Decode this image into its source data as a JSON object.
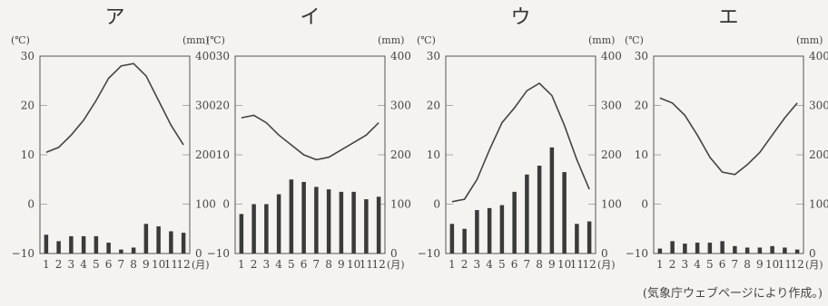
{
  "source": "(気象庁ウェブページにより作成。)",
  "temp_unit": "(℃)",
  "precip_unit": "(mm)",
  "month_unit": "(月)",
  "temp_ticks": [
    "30",
    "20",
    "10",
    "0",
    "−10"
  ],
  "precip_ticks": [
    "400",
    "300",
    "200",
    "100",
    "0"
  ],
  "month_labels": [
    "1",
    "2",
    "3",
    "4",
    "5",
    "6",
    "7",
    "8",
    "9",
    "10",
    "11",
    "12"
  ],
  "chart_data": [
    {
      "type": "bar+line",
      "title": "ア",
      "categories": [
        "1",
        "2",
        "3",
        "4",
        "5",
        "6",
        "7",
        "8",
        "9",
        "10",
        "11",
        "12"
      ],
      "temperature": [
        10.5,
        11.5,
        14,
        17,
        21,
        25.5,
        28,
        28.5,
        26,
        21,
        16,
        12
      ],
      "precipitation": [
        38,
        25,
        35,
        35,
        35,
        22,
        8,
        12,
        60,
        55,
        45,
        42
      ],
      "ylim_temp": [
        -10,
        30
      ],
      "ylim_precip": [
        0,
        400
      ]
    },
    {
      "type": "bar+line",
      "title": "イ",
      "categories": [
        "1",
        "2",
        "3",
        "4",
        "5",
        "6",
        "7",
        "8",
        "9",
        "10",
        "11",
        "12"
      ],
      "temperature": [
        17.5,
        18,
        16.5,
        14,
        12,
        10,
        9,
        9.5,
        11,
        12.5,
        14,
        16.5
      ],
      "precipitation": [
        80,
        100,
        100,
        120,
        150,
        145,
        135,
        130,
        125,
        125,
        110,
        115
      ],
      "ylim_temp": [
        -10,
        30
      ],
      "ylim_precip": [
        0,
        400
      ]
    },
    {
      "type": "bar+line",
      "title": "ウ",
      "categories": [
        "1",
        "2",
        "3",
        "4",
        "5",
        "6",
        "7",
        "8",
        "9",
        "10",
        "11",
        "12"
      ],
      "temperature": [
        0.5,
        1,
        5,
        11,
        16.5,
        19.5,
        23,
        24.5,
        22,
        16,
        9,
        3
      ],
      "precipitation": [
        60,
        50,
        88,
        92,
        98,
        125,
        160,
        178,
        215,
        165,
        60,
        65
      ],
      "ylim_temp": [
        -10,
        30
      ],
      "ylim_precip": [
        0,
        400
      ]
    },
    {
      "type": "bar+line",
      "title": "エ",
      "categories": [
        "1",
        "2",
        "3",
        "4",
        "5",
        "6",
        "7",
        "8",
        "9",
        "10",
        "11",
        "12"
      ],
      "temperature": [
        21.5,
        20.5,
        18,
        14,
        9.5,
        6.5,
        6,
        8,
        10.5,
        14,
        17.5,
        20.5
      ],
      "precipitation": [
        10,
        25,
        20,
        22,
        22,
        25,
        15,
        12,
        12,
        15,
        12,
        8
      ],
      "ylim_temp": [
        -10,
        30
      ],
      "ylim_precip": [
        0,
        400
      ]
    }
  ]
}
